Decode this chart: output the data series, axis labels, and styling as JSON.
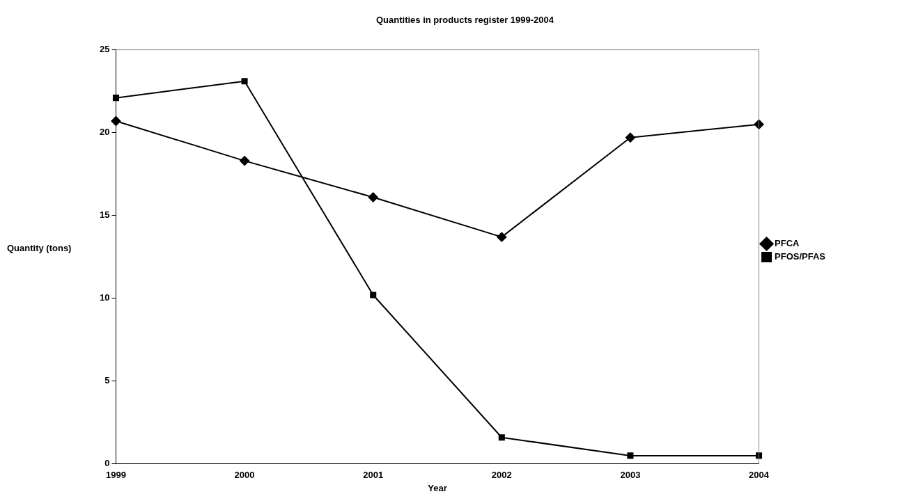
{
  "chart_data": {
    "type": "line",
    "title": "Quantities in products register 1999-2004",
    "xlabel": "Year",
    "ylabel": "Quantity (tons)",
    "categories": [
      "1999",
      "2000",
      "2001",
      "2002",
      "2003",
      "2004"
    ],
    "series": [
      {
        "name": "PFCA",
        "color": "#000000",
        "marker": "diamond",
        "values": [
          20.7,
          18.3,
          16.1,
          13.7,
          19.7,
          20.5
        ]
      },
      {
        "name": "PFOS/PFAS",
        "color": "#000000",
        "marker": "square",
        "values": [
          22.1,
          23.1,
          10.2,
          1.6,
          0.5,
          0.5
        ]
      }
    ],
    "ylim": [
      0,
      25
    ],
    "yticks": [
      0,
      5,
      10,
      15,
      20,
      25
    ],
    "grid": false,
    "legend": "right",
    "line_style": "solid"
  }
}
